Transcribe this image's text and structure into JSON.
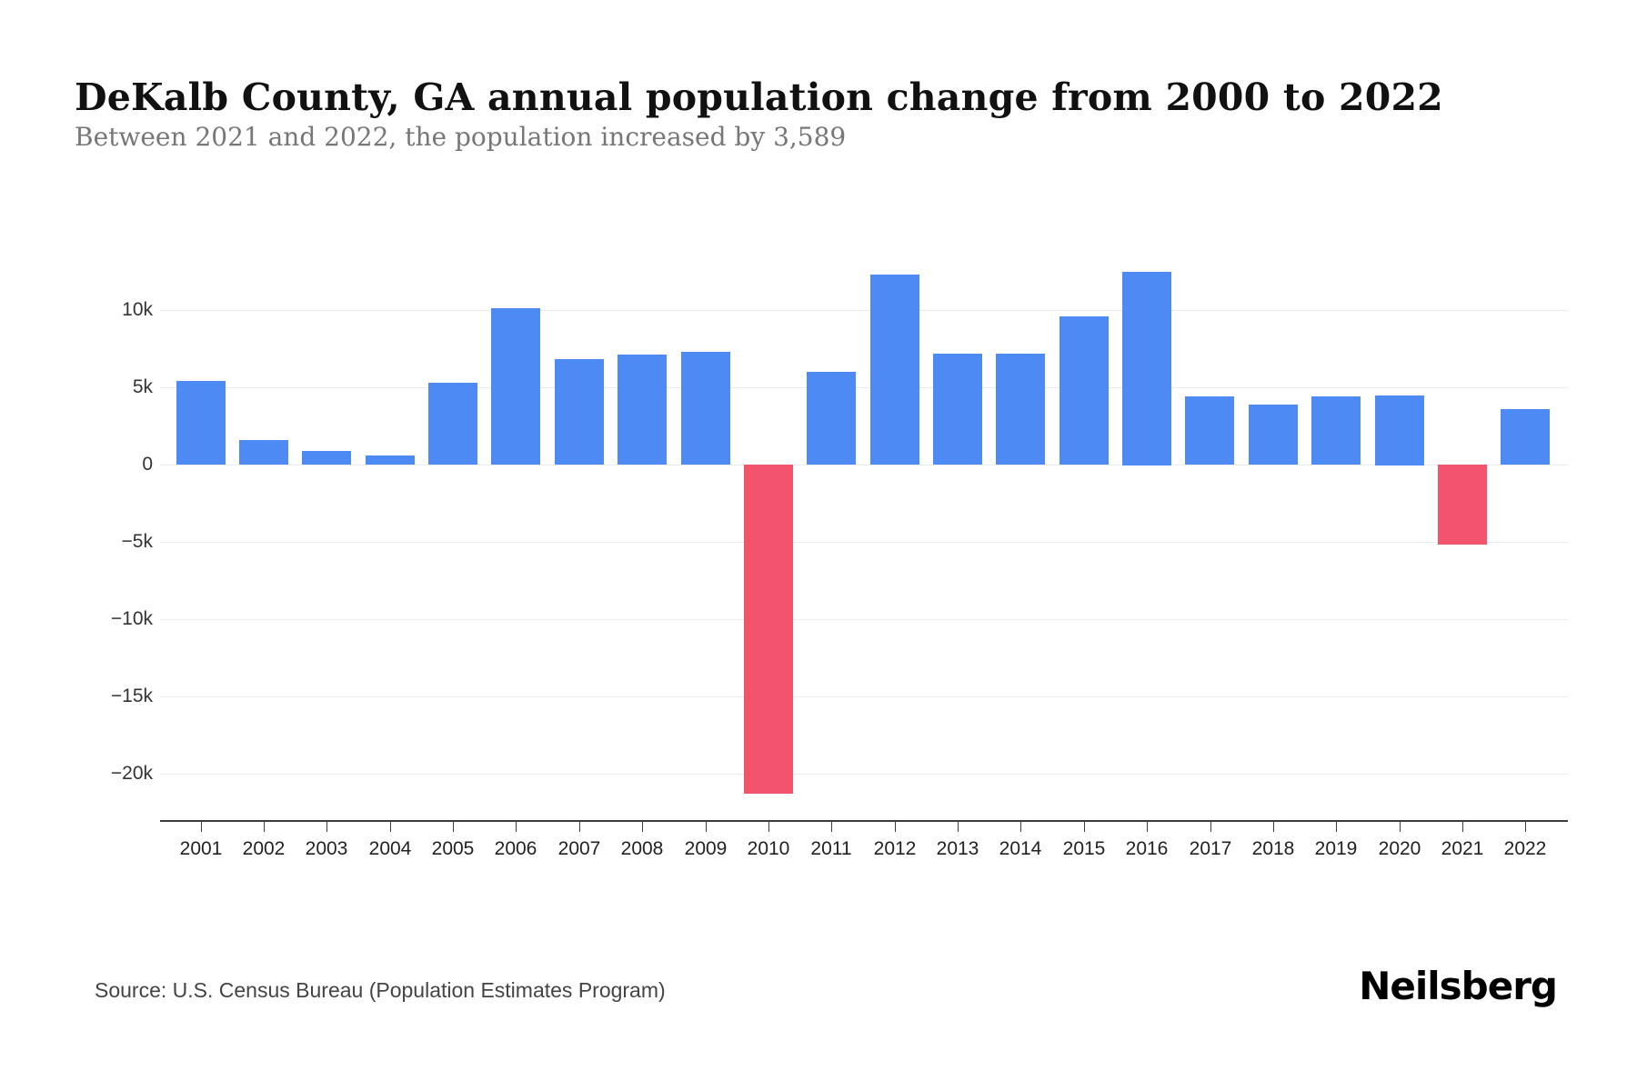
{
  "header": {
    "title": "DeKalb County, GA annual population change from 2000 to 2022",
    "subtitle": "Between 2021 and 2022, the population increased by 3,589"
  },
  "footer": {
    "source": "Source: U.S. Census Bureau (Population Estimates Program)",
    "brand": "Neilsberg"
  },
  "colors": {
    "positive_bar": "#4e8af4",
    "negative_bar": "#f4536e",
    "gridline": "#ebebeb",
    "axis_line": "#3c3c3c",
    "axis_text": "#333333"
  },
  "chart_data": {
    "type": "bar",
    "title": "DeKalb County, GA annual population change from 2000 to 2022",
    "xlabel": "",
    "ylabel": "",
    "categories": [
      "2001",
      "2002",
      "2003",
      "2004",
      "2005",
      "2006",
      "2007",
      "2008",
      "2009",
      "2010",
      "2011",
      "2012",
      "2013",
      "2014",
      "2015",
      "2016",
      "2017",
      "2018",
      "2019",
      "2020",
      "2021",
      "2022"
    ],
    "values": [
      5400,
      1600,
      900,
      600,
      5300,
      10100,
      6800,
      7100,
      7300,
      -21300,
      6000,
      12300,
      7200,
      7200,
      9600,
      12500,
      4400,
      3900,
      4400,
      4500,
      -5200,
      3589
    ],
    "yticks": [
      10000,
      5000,
      0,
      -5000,
      -10000,
      -15000,
      -20000
    ],
    "ytick_labels": [
      "10k",
      "5k",
      "0",
      "−5k",
      "−10k",
      "−15k",
      "−20k"
    ],
    "ylim": [
      -22000,
      13500
    ],
    "grid": true,
    "legend": false,
    "color_rule": "positive values blue, negative values red"
  }
}
